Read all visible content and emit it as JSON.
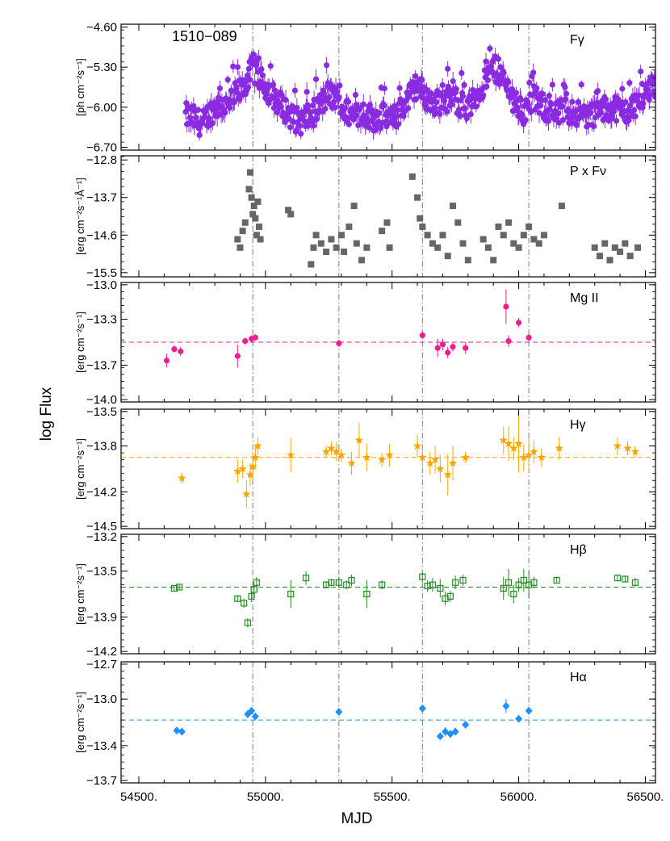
{
  "figure": {
    "source_label": "1510−089",
    "ylabel_global": "log Flux",
    "xlabel": "MJD",
    "x_ticks": [
      {
        "value": 54500,
        "label": "54500."
      },
      {
        "value": 55000,
        "label": "55000."
      },
      {
        "value": 55500,
        "label": "55500."
      },
      {
        "value": 56000,
        "label": "56000."
      },
      {
        "value": 56500,
        "label": "56500."
      }
    ],
    "xlim": [
      54430,
      56540
    ],
    "vlines": [
      54950,
      55290,
      55620,
      56040
    ],
    "colors": {
      "gamma": "#8a2be2",
      "optical": "#666666",
      "mgii": "#ee1f8f",
      "hgamma": "#ffa500",
      "hbeta": "#228b22",
      "halpha": "#1e90ff",
      "vline": "#888888"
    }
  },
  "chart_data": [
    {
      "id": "gamma",
      "type": "scatter",
      "panel_label": "Fγ",
      "unit_label": "[ph cm⁻²s⁻¹]",
      "ylim": [
        -6.75,
        -4.55
      ],
      "y_ticks": [
        {
          "value": -4.6,
          "label": "−4.60"
        },
        {
          "value": -5.3,
          "label": "−5.30"
        },
        {
          "value": -6.0,
          "label": "−6.00"
        },
        {
          "value": -6.7,
          "label": "−6.70"
        }
      ],
      "marker": "circle",
      "anchors": [
        [
          54690,
          -6.15
        ],
        [
          54720,
          -6.2
        ],
        [
          54750,
          -6.3
        ],
        [
          54780,
          -6.1
        ],
        [
          54820,
          -5.95
        ],
        [
          54850,
          -6.0
        ],
        [
          54880,
          -5.8
        ],
        [
          54905,
          -5.7
        ],
        [
          54930,
          -5.5
        ],
        [
          54950,
          -5.3
        ],
        [
          54970,
          -5.45
        ],
        [
          54990,
          -5.6
        ],
        [
          55020,
          -5.75
        ],
        [
          55050,
          -5.9
        ],
        [
          55080,
          -6.05
        ],
        [
          55110,
          -6.2
        ],
        [
          55140,
          -6.25
        ],
        [
          55180,
          -6.15
        ],
        [
          55220,
          -5.95
        ],
        [
          55250,
          -5.75
        ],
        [
          55280,
          -5.9
        ],
        [
          55310,
          -6.05
        ],
        [
          55350,
          -6.15
        ],
        [
          55390,
          -6.1
        ],
        [
          55430,
          -6.2
        ],
        [
          55470,
          -6.15
        ],
        [
          55500,
          -6.25
        ],
        [
          55540,
          -6.0
        ],
        [
          55570,
          -5.8
        ],
        [
          55600,
          -5.6
        ],
        [
          55630,
          -5.8
        ],
        [
          55660,
          -5.95
        ],
        [
          55690,
          -5.9
        ],
        [
          55720,
          -5.85
        ],
        [
          55760,
          -5.9
        ],
        [
          55800,
          -6.05
        ],
        [
          55840,
          -5.75
        ],
        [
          55870,
          -5.55
        ],
        [
          55900,
          -5.3
        ],
        [
          55930,
          -5.45
        ],
        [
          55960,
          -5.7
        ],
        [
          55990,
          -5.95
        ],
        [
          56020,
          -6.1
        ],
        [
          56060,
          -5.85
        ],
        [
          56100,
          -6.0
        ],
        [
          56140,
          -6.15
        ],
        [
          56180,
          -6.05
        ],
        [
          56230,
          -6.1
        ],
        [
          56280,
          -6.15
        ],
        [
          56330,
          -6.05
        ],
        [
          56380,
          -6.0
        ],
        [
          56420,
          -6.1
        ],
        [
          56460,
          -5.95
        ],
        [
          56500,
          -5.75
        ],
        [
          56530,
          -5.6
        ]
      ]
    },
    {
      "id": "optical",
      "type": "scatter",
      "panel_label": "P x Fν",
      "unit_label": "[erg cm⁻²s⁻¹Å⁻¹]",
      "ylim": [
        -15.6,
        -12.7
      ],
      "y_ticks": [
        {
          "value": -12.8,
          "label": "−12.8"
        },
        {
          "value": -13.7,
          "label": "−13.7"
        },
        {
          "value": -14.6,
          "label": "−14.6"
        },
        {
          "value": -15.5,
          "label": "−15.5"
        }
      ],
      "marker": "square",
      "points": [
        [
          54890,
          -14.7
        ],
        [
          54900,
          -14.9
        ],
        [
          54910,
          -14.5
        ],
        [
          54920,
          -14.3
        ],
        [
          54935,
          -13.5
        ],
        [
          54940,
          -13.1
        ],
        [
          54945,
          -13.7
        ],
        [
          54950,
          -14.1
        ],
        [
          54955,
          -13.9
        ],
        [
          54960,
          -14.2
        ],
        [
          54965,
          -14.6
        ],
        [
          54970,
          -13.8
        ],
        [
          54975,
          -14.4
        ],
        [
          54980,
          -14.7
        ],
        [
          55090,
          -14.0
        ],
        [
          55100,
          -14.1
        ],
        [
          55180,
          -15.3
        ],
        [
          55190,
          -14.9
        ],
        [
          55200,
          -14.6
        ],
        [
          55220,
          -14.8
        ],
        [
          55240,
          -15.0
        ],
        [
          55260,
          -14.7
        ],
        [
          55280,
          -14.9
        ],
        [
          55300,
          -14.6
        ],
        [
          55310,
          -15.0
        ],
        [
          55330,
          -14.4
        ],
        [
          55350,
          -13.9
        ],
        [
          55360,
          -14.8
        ],
        [
          55380,
          -15.2
        ],
        [
          55400,
          -14.9
        ],
        [
          55460,
          -14.5
        ],
        [
          55480,
          -14.3
        ],
        [
          55490,
          -14.9
        ],
        [
          55580,
          -13.2
        ],
        [
          55600,
          -13.7
        ],
        [
          55610,
          -14.2
        ],
        [
          55620,
          -14.4
        ],
        [
          55640,
          -14.6
        ],
        [
          55660,
          -14.8
        ],
        [
          55680,
          -14.9
        ],
        [
          55700,
          -14.6
        ],
        [
          55720,
          -15.1
        ],
        [
          55740,
          -13.9
        ],
        [
          55760,
          -14.3
        ],
        [
          55780,
          -14.8
        ],
        [
          55800,
          -15.2
        ],
        [
          55860,
          -14.7
        ],
        [
          55880,
          -14.9
        ],
        [
          55900,
          -15.2
        ],
        [
          55920,
          -14.4
        ],
        [
          55940,
          -14.6
        ],
        [
          55960,
          -14.3
        ],
        [
          55980,
          -14.8
        ],
        [
          56000,
          -14.9
        ],
        [
          56020,
          -14.6
        ],
        [
          56040,
          -14.4
        ],
        [
          56060,
          -14.7
        ],
        [
          56080,
          -14.8
        ],
        [
          56100,
          -14.6
        ],
        [
          56170,
          -13.9
        ],
        [
          56300,
          -14.9
        ],
        [
          56320,
          -15.1
        ],
        [
          56340,
          -14.8
        ],
        [
          56360,
          -15.2
        ],
        [
          56380,
          -14.9
        ],
        [
          56400,
          -15.0
        ],
        [
          56420,
          -14.8
        ],
        [
          56440,
          -15.1
        ],
        [
          56470,
          -14.9
        ]
      ]
    },
    {
      "id": "mgii",
      "type": "scatter",
      "panel_label": "Mg II",
      "unit_label": "[erg cm⁻²s⁻¹]",
      "ylim": [
        -14.02,
        -12.98
      ],
      "y_ticks": [
        {
          "value": -13.0,
          "label": "−13.0"
        },
        {
          "value": -13.3,
          "label": "−13.3"
        },
        {
          "value": -13.7,
          "label": "−13.7"
        },
        {
          "value": -14.0,
          "label": "−14.0"
        }
      ],
      "mean": -13.5,
      "marker": "circle",
      "points": [
        [
          54610,
          -13.66,
          0.06
        ],
        [
          54640,
          -13.56,
          0.03
        ],
        [
          54665,
          -13.58,
          0.04
        ],
        [
          54890,
          -13.62,
          0.1
        ],
        [
          54920,
          -13.49,
          0.03
        ],
        [
          54945,
          -13.47,
          0.03
        ],
        [
          54960,
          -13.46,
          0.03
        ],
        [
          55290,
          -13.51,
          0.03
        ],
        [
          55620,
          -13.44,
          0.03
        ],
        [
          55680,
          -13.55,
          0.08
        ],
        [
          55700,
          -13.52,
          0.05
        ],
        [
          55720,
          -13.59,
          0.05
        ],
        [
          55740,
          -13.54,
          0.04
        ],
        [
          55790,
          -13.55,
          0.05
        ],
        [
          55950,
          -13.19,
          0.15
        ],
        [
          55960,
          -13.49,
          0.05
        ],
        [
          56000,
          -13.33,
          0.04
        ],
        [
          56040,
          -13.46,
          0.03
        ]
      ]
    },
    {
      "id": "hgamma",
      "type": "scatter",
      "panel_label": "Hγ",
      "unit_label": "[erg cm⁻²s⁻¹]",
      "ylim": [
        -14.52,
        -13.48
      ],
      "y_ticks": [
        {
          "value": -13.5,
          "label": "−13.5"
        },
        {
          "value": -13.8,
          "label": "−13.8"
        },
        {
          "value": -14.2,
          "label": "−14.2"
        },
        {
          "value": -14.5,
          "label": "−14.5"
        }
      ],
      "mean": -13.9,
      "marker": "star",
      "points": [
        [
          54670,
          -14.08,
          0.05
        ],
        [
          54890,
          -14.02,
          0.1
        ],
        [
          54910,
          -14.0,
          0.08
        ],
        [
          54925,
          -14.22,
          0.12
        ],
        [
          54940,
          -14.05,
          0.1
        ],
        [
          54950,
          -13.98,
          0.12
        ],
        [
          54960,
          -13.9,
          0.1
        ],
        [
          54970,
          -13.8,
          0.08
        ],
        [
          55100,
          -13.88,
          0.15
        ],
        [
          55240,
          -13.85,
          0.05
        ],
        [
          55260,
          -13.82,
          0.06
        ],
        [
          55280,
          -13.85,
          0.08
        ],
        [
          55300,
          -13.88,
          0.06
        ],
        [
          55340,
          -13.95,
          0.1
        ],
        [
          55370,
          -13.75,
          0.15
        ],
        [
          55400,
          -13.9,
          0.12
        ],
        [
          55460,
          -13.92,
          0.06
        ],
        [
          55490,
          -13.88,
          0.1
        ],
        [
          55600,
          -13.8,
          0.1
        ],
        [
          55620,
          -13.9,
          0.08
        ],
        [
          55650,
          -13.95,
          0.1
        ],
        [
          55670,
          -13.92,
          0.12
        ],
        [
          55690,
          -14.0,
          0.12
        ],
        [
          55720,
          -14.05,
          0.18
        ],
        [
          55740,
          -13.95,
          0.15
        ],
        [
          55790,
          -13.9,
          0.05
        ],
        [
          55940,
          -13.75,
          0.12
        ],
        [
          55960,
          -13.78,
          0.15
        ],
        [
          55980,
          -13.82,
          0.1
        ],
        [
          56000,
          -13.78,
          0.25
        ],
        [
          56020,
          -13.9,
          0.12
        ],
        [
          56040,
          -13.88,
          0.15
        ],
        [
          56060,
          -13.85,
          0.1
        ],
        [
          56090,
          -13.9,
          0.08
        ],
        [
          56160,
          -13.82,
          0.1
        ],
        [
          56390,
          -13.8,
          0.08
        ],
        [
          56430,
          -13.82,
          0.06
        ],
        [
          56460,
          -13.85,
          0.05
        ]
      ]
    },
    {
      "id": "hbeta",
      "type": "scatter",
      "panel_label": "Hβ",
      "unit_label": "[erg cm⁻²s⁻¹]",
      "ylim": [
        -14.22,
        -13.18
      ],
      "y_ticks": [
        {
          "value": -13.2,
          "label": "−13.2"
        },
        {
          "value": -13.5,
          "label": "−13.5"
        },
        {
          "value": -13.9,
          "label": "−13.9"
        },
        {
          "value": -14.2,
          "label": "−14.2"
        }
      ],
      "mean": -13.64,
      "marker": "square-open",
      "points": [
        [
          54640,
          -13.65,
          0.02
        ],
        [
          54660,
          -13.64,
          0.02
        ],
        [
          54890,
          -13.74,
          0.03
        ],
        [
          54915,
          -13.78,
          0.04
        ],
        [
          54930,
          -13.95,
          0.04
        ],
        [
          54945,
          -13.72,
          0.05
        ],
        [
          54955,
          -13.66,
          0.05
        ],
        [
          54965,
          -13.6,
          0.05
        ],
        [
          55100,
          -13.7,
          0.12
        ],
        [
          55160,
          -13.56,
          0.06
        ],
        [
          55240,
          -13.62,
          0.03
        ],
        [
          55260,
          -13.6,
          0.03
        ],
        [
          55290,
          -13.6,
          0.05
        ],
        [
          55320,
          -13.62,
          0.04
        ],
        [
          55340,
          -13.58,
          0.05
        ],
        [
          55400,
          -13.7,
          0.12
        ],
        [
          55460,
          -13.62,
          0.04
        ],
        [
          55620,
          -13.55,
          0.04
        ],
        [
          55640,
          -13.63,
          0.05
        ],
        [
          55660,
          -13.62,
          0.06
        ],
        [
          55690,
          -13.65,
          0.08
        ],
        [
          55710,
          -13.74,
          0.06
        ],
        [
          55730,
          -13.72,
          0.05
        ],
        [
          55750,
          -13.6,
          0.06
        ],
        [
          55780,
          -13.58,
          0.05
        ],
        [
          55940,
          -13.65,
          0.1
        ],
        [
          55960,
          -13.6,
          0.12
        ],
        [
          55980,
          -13.7,
          0.08
        ],
        [
          56000,
          -13.62,
          0.06
        ],
        [
          56020,
          -13.58,
          0.1
        ],
        [
          56040,
          -13.62,
          0.12
        ],
        [
          56060,
          -13.6,
          0.05
        ],
        [
          56150,
          -13.58,
          0.03
        ],
        [
          56390,
          -13.56,
          0.03
        ],
        [
          56420,
          -13.57,
          0.03
        ],
        [
          56460,
          -13.6,
          0.04
        ]
      ]
    },
    {
      "id": "halpha",
      "type": "scatter",
      "panel_label": "Hα",
      "unit_label": "[erg cm⁻²s⁻¹]",
      "ylim": [
        -13.72,
        -12.68
      ],
      "y_ticks": [
        {
          "value": -12.7,
          "label": "−12.7"
        },
        {
          "value": -13.0,
          "label": "−13.0"
        },
        {
          "value": -13.4,
          "label": "−13.4"
        },
        {
          "value": -13.7,
          "label": "−13.7"
        }
      ],
      "mean": -13.18,
      "marker": "diamond",
      "points": [
        [
          54650,
          -13.27,
          0.02
        ],
        [
          54670,
          -13.28,
          0.02
        ],
        [
          54930,
          -13.13,
          0.03
        ],
        [
          54945,
          -13.1,
          0.03
        ],
        [
          54960,
          -13.15,
          0.03
        ],
        [
          55290,
          -13.11,
          0.03
        ],
        [
          55620,
          -13.08,
          0.03
        ],
        [
          55690,
          -13.32,
          0.03
        ],
        [
          55710,
          -13.28,
          0.04
        ],
        [
          55730,
          -13.3,
          0.03
        ],
        [
          55750,
          -13.28,
          0.03
        ],
        [
          55790,
          -13.22,
          0.03
        ],
        [
          55950,
          -13.06,
          0.06
        ],
        [
          56000,
          -13.17,
          0.03
        ],
        [
          56040,
          -13.1,
          0.03
        ]
      ]
    }
  ]
}
